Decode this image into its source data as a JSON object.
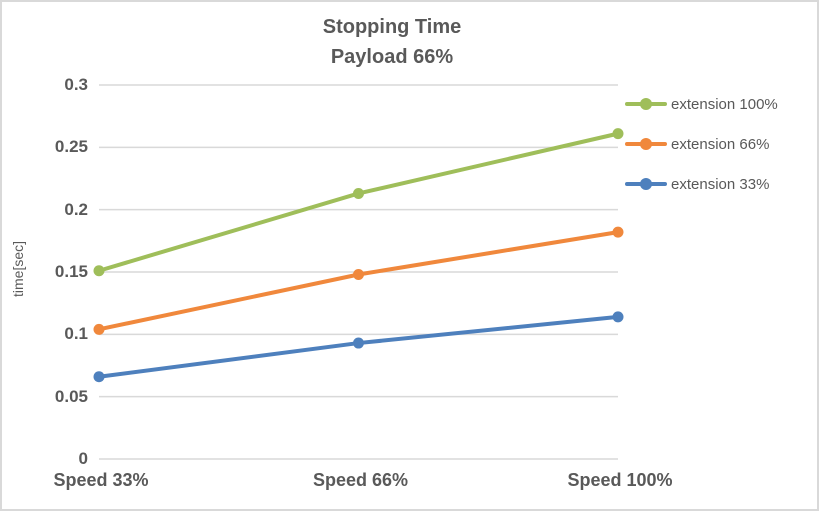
{
  "chart_data": {
    "type": "line",
    "title_lines": [
      "Stopping Time",
      "Payload 66%"
    ],
    "ylabel": "time[sec]",
    "xlabel": "",
    "categories": [
      "Speed 33%",
      "Speed 66%",
      "Speed 100%"
    ],
    "series": [
      {
        "name": "extension 100%",
        "color": "#9fbe5a",
        "values": [
          0.151,
          0.213,
          0.261
        ]
      },
      {
        "name": "extension 66%",
        "color": "#f0883c",
        "values": [
          0.104,
          0.148,
          0.182
        ]
      },
      {
        "name": "extension 33%",
        "color": "#4e80bd",
        "values": [
          0.066,
          0.093,
          0.114
        ]
      }
    ],
    "ylim": [
      0,
      0.3
    ],
    "ytick_step": 0.05,
    "yticks": [
      "0",
      "0.05",
      "0.1",
      "0.15",
      "0.2",
      "0.25",
      "0.3"
    ],
    "grid": true,
    "gridline_color": "#d9d9d9",
    "axis_text_color": "#595959",
    "legend_position": "right",
    "markers": "circle"
  }
}
